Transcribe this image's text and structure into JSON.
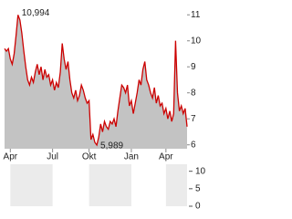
{
  "chart_data": {
    "type": "area",
    "categories": [
      null,
      null,
      null,
      "Apr",
      null,
      null,
      null,
      null,
      null,
      null,
      null,
      null,
      null,
      null,
      null,
      null,
      null,
      null,
      null,
      null,
      null,
      null,
      null,
      null,
      null,
      "Jul",
      null,
      null,
      null,
      null,
      null,
      null,
      null,
      null,
      null,
      null,
      null,
      null,
      null,
      null,
      null,
      null,
      null,
      null,
      "Okt",
      null,
      null,
      null,
      null,
      null,
      null,
      null,
      null,
      null,
      null,
      null,
      null,
      null,
      null,
      null,
      null,
      null,
      null,
      null,
      null,
      null,
      "Jan",
      null,
      null,
      null,
      null,
      null,
      null,
      null,
      null,
      null,
      null,
      null,
      null,
      null,
      null,
      null,
      null,
      null,
      "Apr",
      null,
      null,
      null,
      null,
      null,
      null,
      null,
      null,
      null,
      null,
      null
    ],
    "values": [
      9.7,
      9.6,
      9.7,
      9.3,
      9.1,
      9.5,
      10.2,
      10.994,
      10.8,
      10.3,
      9.6,
      9.0,
      8.5,
      8.3,
      8.6,
      8.4,
      8.8,
      9.1,
      8.7,
      9.0,
      8.5,
      8.9,
      8.6,
      8.7,
      8.3,
      8.5,
      8.1,
      8.4,
      8.2,
      8.8,
      9.9,
      9.3,
      8.9,
      9.2,
      8.5,
      8.0,
      7.8,
      8.1,
      7.7,
      7.9,
      8.3,
      8.1,
      7.8,
      7.6,
      7.7,
      6.2,
      6.4,
      6.1,
      5.989,
      6.3,
      6.8,
      6.5,
      6.9,
      6.7,
      6.6,
      6.9,
      6.8,
      7.0,
      6.7,
      7.3,
      7.8,
      8.3,
      8.2,
      8.0,
      8.3,
      7.5,
      7.7,
      7.2,
      7.6,
      8.0,
      8.5,
      8.3,
      8.9,
      9.2,
      8.5,
      8.3,
      8.0,
      7.8,
      8.2,
      7.6,
      7.9,
      7.5,
      7.6,
      7.2,
      7.4,
      7.0,
      7.3,
      6.9,
      7.2,
      10.0,
      8.0,
      7.3,
      7.5,
      7.2,
      7.4,
      6.7
    ],
    "color": "#cc0000",
    "fill": "#c3c3c3",
    "ylim": [
      5.85,
      11.5
    ],
    "yticks": [
      6,
      7,
      8,
      9,
      10,
      11
    ],
    "high_label": "10,994",
    "low_label": "5,989",
    "volume": {
      "ylim": [
        0,
        12
      ],
      "yticks": [
        0,
        5,
        10
      ]
    }
  }
}
